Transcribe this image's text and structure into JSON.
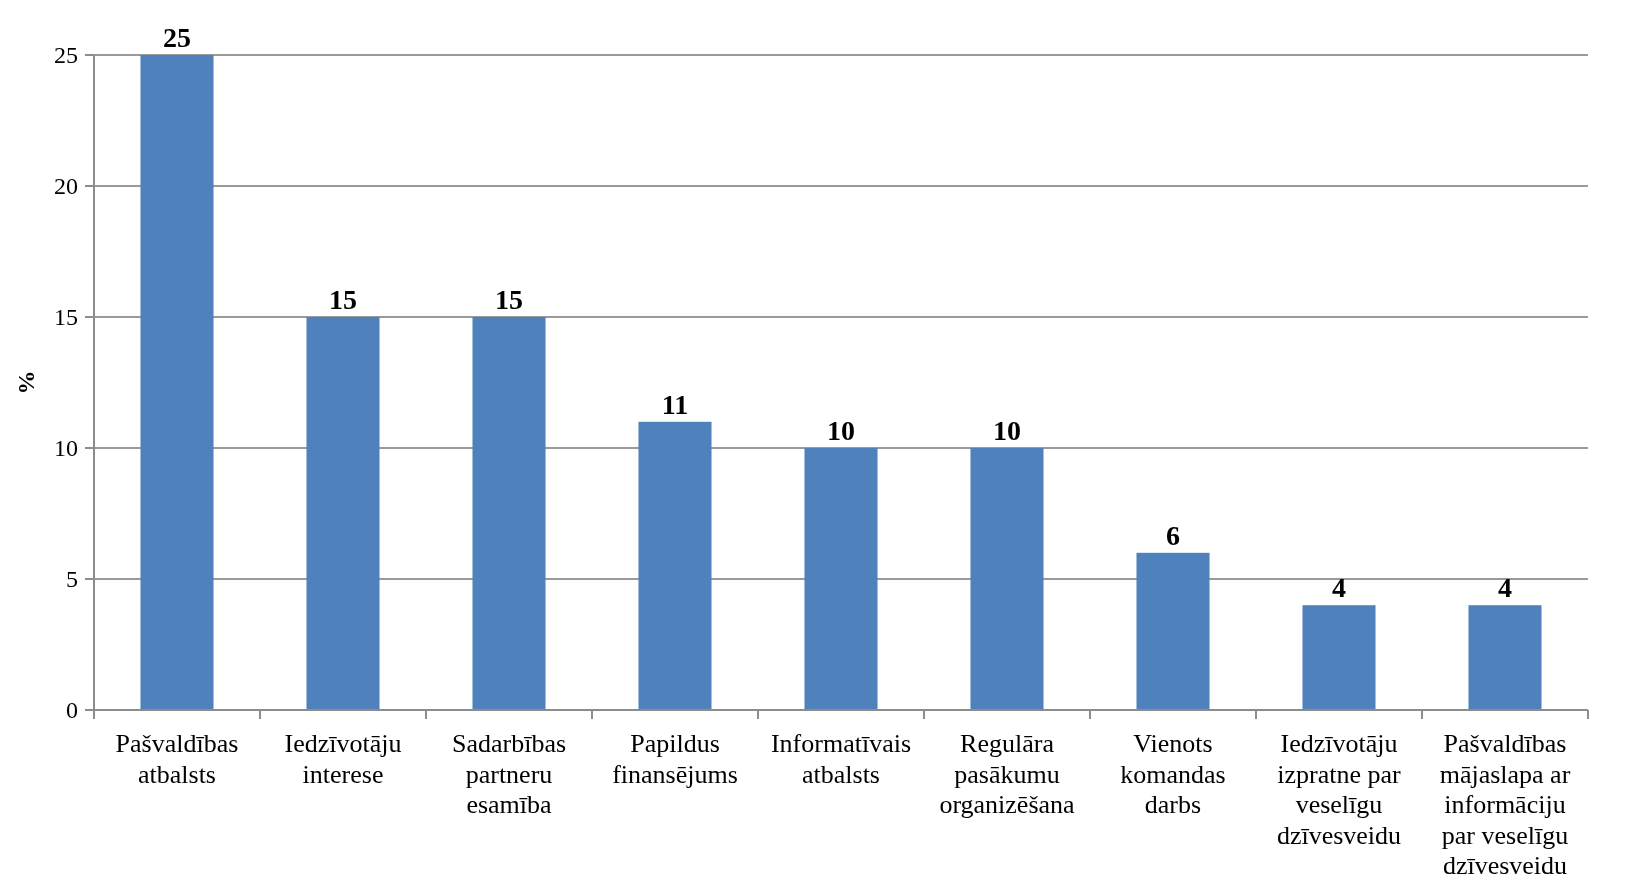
{
  "chart_data": {
    "type": "bar",
    "ylabel": "%",
    "categories": [
      "Pašvaldības atbalsts",
      "Iedzīvotāju interese",
      "Sadarbības partneru esamība",
      "Papildus finansējums",
      "Informatīvais atbalsts",
      "Regulāra pasākumu organizēšana",
      "Vienots komandas darbs",
      "Iedzīvotāju izpratne par veselīgu dzīvesveidu",
      "Pašvaldības mājaslapa ar informāciju par veselīgu dzīvesveidu"
    ],
    "values": [
      25,
      15,
      15,
      11,
      10,
      10,
      6,
      4,
      4
    ],
    "color": "#4f81bd",
    "ylim": [
      0,
      25
    ],
    "yticks": [
      0,
      5,
      10,
      15,
      20,
      25
    ],
    "grid": "y",
    "data_labels": true
  }
}
